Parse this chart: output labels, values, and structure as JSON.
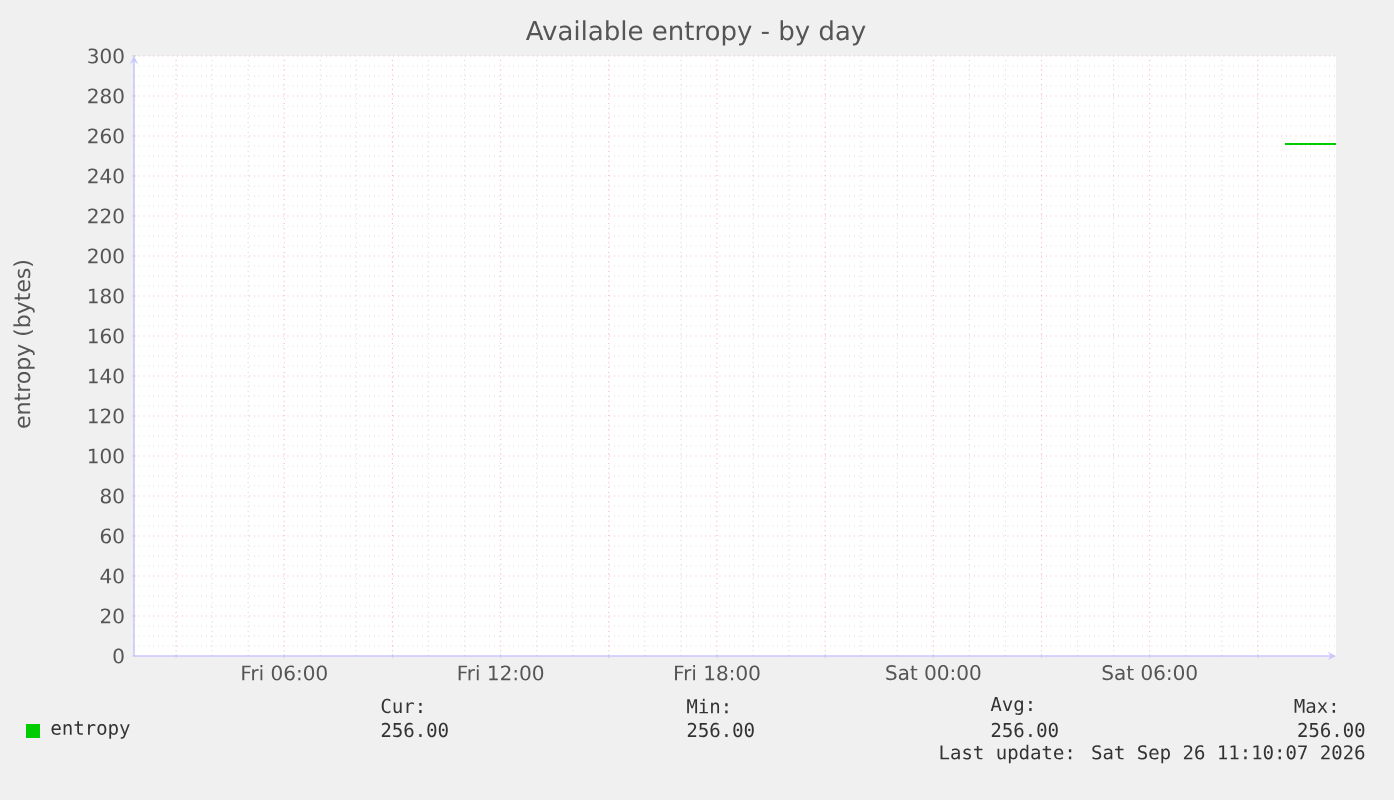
{
  "chart_data": {
    "type": "line",
    "title": "Available entropy - by day",
    "ylabel": "entropy (bytes)",
    "xlim": [
      "2026-09-25T01:50",
      "2026-09-26T11:10"
    ],
    "xticks": [
      {
        "value": "2026-09-25T03:00",
        "label": null
      },
      {
        "value": "2026-09-25T06:00",
        "label": "Fri 06:00"
      },
      {
        "value": "2026-09-25T09:00",
        "label": null
      },
      {
        "value": "2026-09-25T12:00",
        "label": "Fri 12:00"
      },
      {
        "value": "2026-09-25T15:00",
        "label": null
      },
      {
        "value": "2026-09-25T18:00",
        "label": "Fri 18:00"
      },
      {
        "value": "2026-09-25T21:00",
        "label": null
      },
      {
        "value": "2026-09-26T00:00",
        "label": "Sat 00:00"
      },
      {
        "value": "2026-09-26T03:00",
        "label": null
      },
      {
        "value": "2026-09-26T06:00",
        "label": "Sat 06:00"
      },
      {
        "value": "2026-09-26T09:00",
        "label": null
      }
    ],
    "ylim": [
      0,
      300
    ],
    "yticks": [
      0,
      20,
      40,
      60,
      80,
      100,
      120,
      140,
      160,
      180,
      200,
      220,
      240,
      260,
      280,
      300
    ],
    "grid": true,
    "legend": "bottom left",
    "series": [
      {
        "name": "entropy",
        "color": "#00cc00",
        "x": [
          "2026-09-26T09:45",
          "2026-09-26T11:10"
        ],
        "values": [
          256,
          256
        ]
      }
    ],
    "annotations": [
      "Cur:",
      "256.00",
      "Min:",
      "256.00",
      "Avg:",
      "256.00",
      "Max:",
      "256.00",
      "Last update: Sat Sep 26 11:10:07 2026"
    ]
  }
}
